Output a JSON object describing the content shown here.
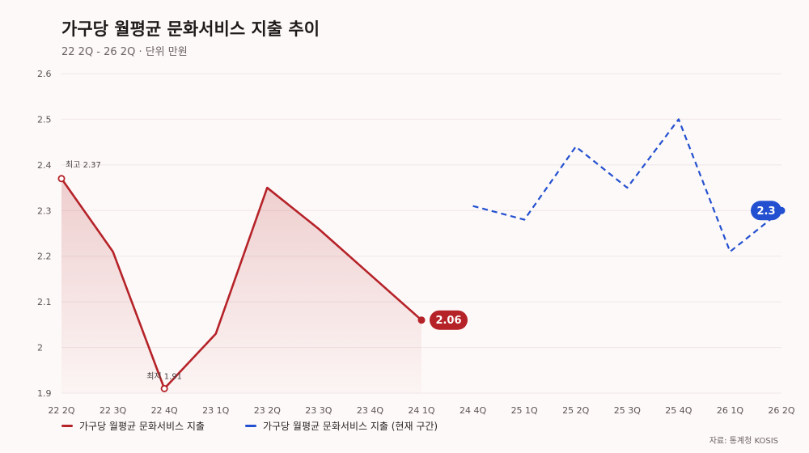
{
  "title": "가구당 월평균 문화서비스 지출 추이",
  "subtitle": "22 2Q - 26 2Q · 단위 만원",
  "source": "자료: 통계청 KOSIS",
  "colors": {
    "actual": "#b52228",
    "forecast": "#2350d0",
    "grid": "#efe7e7",
    "axis_text": "#5b5353"
  },
  "chart_data": {
    "type": "line",
    "ylim": [
      1.9,
      2.6
    ],
    "yticks": [
      "1.9",
      "2",
      "2.1",
      "2.2",
      "2.3",
      "2.4",
      "2.5",
      "2.6"
    ],
    "yticks_values": [
      1.9,
      2.0,
      2.1,
      2.2,
      2.3,
      2.4,
      2.5,
      2.6
    ],
    "categories": [
      "22 2Q",
      "22 3Q",
      "22 4Q",
      "23 1Q",
      "23 2Q",
      "23 3Q",
      "23 4Q",
      "24 1Q",
      "24 4Q",
      "25 1Q",
      "25 2Q",
      "25 3Q",
      "25 4Q",
      "26 1Q",
      "26 2Q"
    ],
    "series": [
      {
        "name": "가구당 월평균 문화서비스 지출",
        "style": "solid",
        "color": "#b52228",
        "values": [
          2.37,
          2.21,
          1.91,
          2.03,
          2.35,
          2.26,
          2.16,
          2.06,
          null,
          null,
          null,
          null,
          null,
          null,
          null
        ]
      },
      {
        "name": "가구당 월평균 문화서비스 지출 (현재 구간)",
        "style": "dashed",
        "color": "#2350d0",
        "values": [
          null,
          null,
          null,
          null,
          null,
          null,
          null,
          null,
          2.31,
          2.28,
          2.44,
          2.35,
          2.5,
          2.21,
          2.3
        ]
      }
    ],
    "annotations": {
      "max_label": "최고 2.37",
      "min_label": "최저 1.91",
      "last_actual_label": "2.06",
      "last_forecast_label": "2.3"
    },
    "grid": true,
    "legend_position": "bottom-left"
  }
}
